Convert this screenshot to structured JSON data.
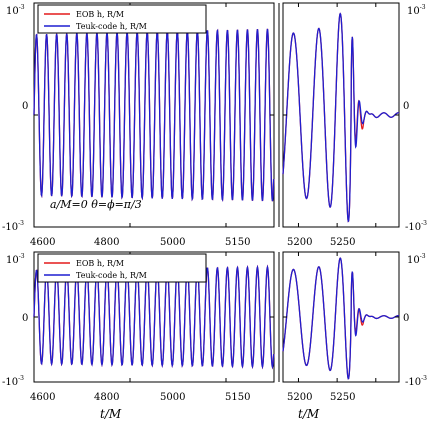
{
  "chart_data": [
    {
      "panel": "top",
      "type": "line",
      "annotation": "a/M=0  θ=ϕ=π/3",
      "x_range_left": [
        4600,
        5100
      ],
      "x_range_right": [
        5130,
        5280
      ],
      "y_range": [
        -1000,
        1000
      ],
      "x_tick_labels": [
        "4600",
        "4800",
        "5000",
        "5150",
        "5200",
        "5250"
      ],
      "y_tick_labels_left": [
        "10",
        "0",
        "-10"
      ],
      "y_tick_labels_right": [
        "10",
        "0",
        "-10"
      ],
      "y_tick_exponent": "-3",
      "legend_position": "top-left",
      "series": [
        {
          "name": "EOB h, R/M",
          "color": "#e41a1c"
        },
        {
          "name": "Teuk-code h, R/M",
          "color": "#1f1fd0"
        }
      ]
    },
    {
      "panel": "bottom",
      "type": "line",
      "x_range_left": [
        4600,
        5100
      ],
      "x_range_right": [
        5130,
        5280
      ],
      "y_range": [
        -1000,
        1000
      ],
      "x_tick_labels": [
        "4600",
        "4800",
        "5000",
        "5150",
        "5200",
        "5250"
      ],
      "y_tick_labels_left": [
        "10",
        "0",
        "-10"
      ],
      "y_tick_labels_right": [
        "10",
        "0",
        "-10"
      ],
      "y_tick_exponent": "-3",
      "xlabel": "t/M",
      "legend_position": "top-left",
      "series": [
        {
          "name": "EOB h, R/M",
          "color": "#e41a1c"
        },
        {
          "name": "Teuk-code h, R/M",
          "color": "#1f1fd0"
        }
      ]
    }
  ]
}
